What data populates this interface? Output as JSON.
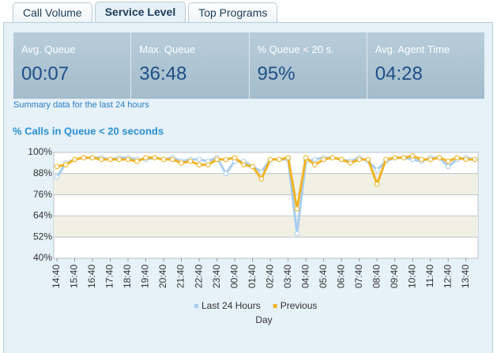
{
  "tabs": [
    "Call Volume",
    "Service Level",
    "Top Programs"
  ],
  "active_tab": 1,
  "summary": [
    {
      "label": "Avg. Queue",
      "value": "00:07"
    },
    {
      "label": "Max. Queue",
      "value": "36:48"
    },
    {
      "label": "% Queue < 20 s.",
      "value": "95%"
    },
    {
      "label": "Avg. Agent Time",
      "value": "04:28"
    }
  ],
  "summary_note": "Summary data for the last 24 hours",
  "chart_data": {
    "type": "line",
    "title": "% Calls in Queue < 20 seconds",
    "x_label": "Day",
    "categories": [
      "14:40",
      null,
      "15:40",
      null,
      "16:40",
      null,
      "17:40",
      null,
      "18:40",
      null,
      "19:40",
      null,
      "20:40",
      null,
      "21:40",
      null,
      "22:40",
      null,
      "23:40",
      null,
      "00:40",
      null,
      "01:40",
      null,
      "02:40",
      null,
      "03:40",
      null,
      "04:40",
      null,
      "05:40",
      null,
      "06:40",
      null,
      "07:40",
      null,
      "08:40",
      null,
      "09:40",
      null,
      "10:40",
      null,
      "11:40",
      null,
      "12:40",
      null,
      "13:40",
      null
    ],
    "series": [
      {
        "name": "Last 24 Hours",
        "color": "#a9cdee",
        "values": [
          86,
          94,
          96,
          97,
          97,
          97,
          96,
          97,
          97,
          96,
          96,
          97,
          96,
          97,
          95,
          96,
          96,
          95,
          97,
          88,
          95,
          95,
          92,
          89,
          96,
          96,
          96,
          54,
          95,
          96,
          97,
          97,
          96,
          95,
          97,
          95,
          90,
          95,
          97,
          97,
          96,
          95,
          97,
          97,
          92,
          96,
          97,
          96
        ]
      },
      {
        "name": "Previous",
        "color": "#f0b323",
        "values": [
          92,
          93,
          96,
          97,
          97,
          96,
          96,
          96,
          96,
          95,
          97,
          97,
          96,
          96,
          94,
          95,
          93,
          93,
          96,
          96,
          97,
          93,
          92,
          85,
          96,
          96,
          97,
          68,
          97,
          93,
          96,
          97,
          96,
          94,
          96,
          96,
          82,
          96,
          97,
          97,
          98,
          96,
          96,
          97,
          95,
          97,
          96,
          96
        ]
      }
    ],
    "ylim": [
      40,
      100
    ],
    "yticks": [
      {
        "value": 40,
        "label": "40%"
      },
      {
        "value": 52,
        "label": "52%"
      },
      {
        "value": 64,
        "label": "64%"
      },
      {
        "value": 76,
        "label": "76%"
      },
      {
        "value": 88,
        "label": "88%"
      },
      {
        "value": 100,
        "label": "100%"
      }
    ],
    "grid": true
  }
}
